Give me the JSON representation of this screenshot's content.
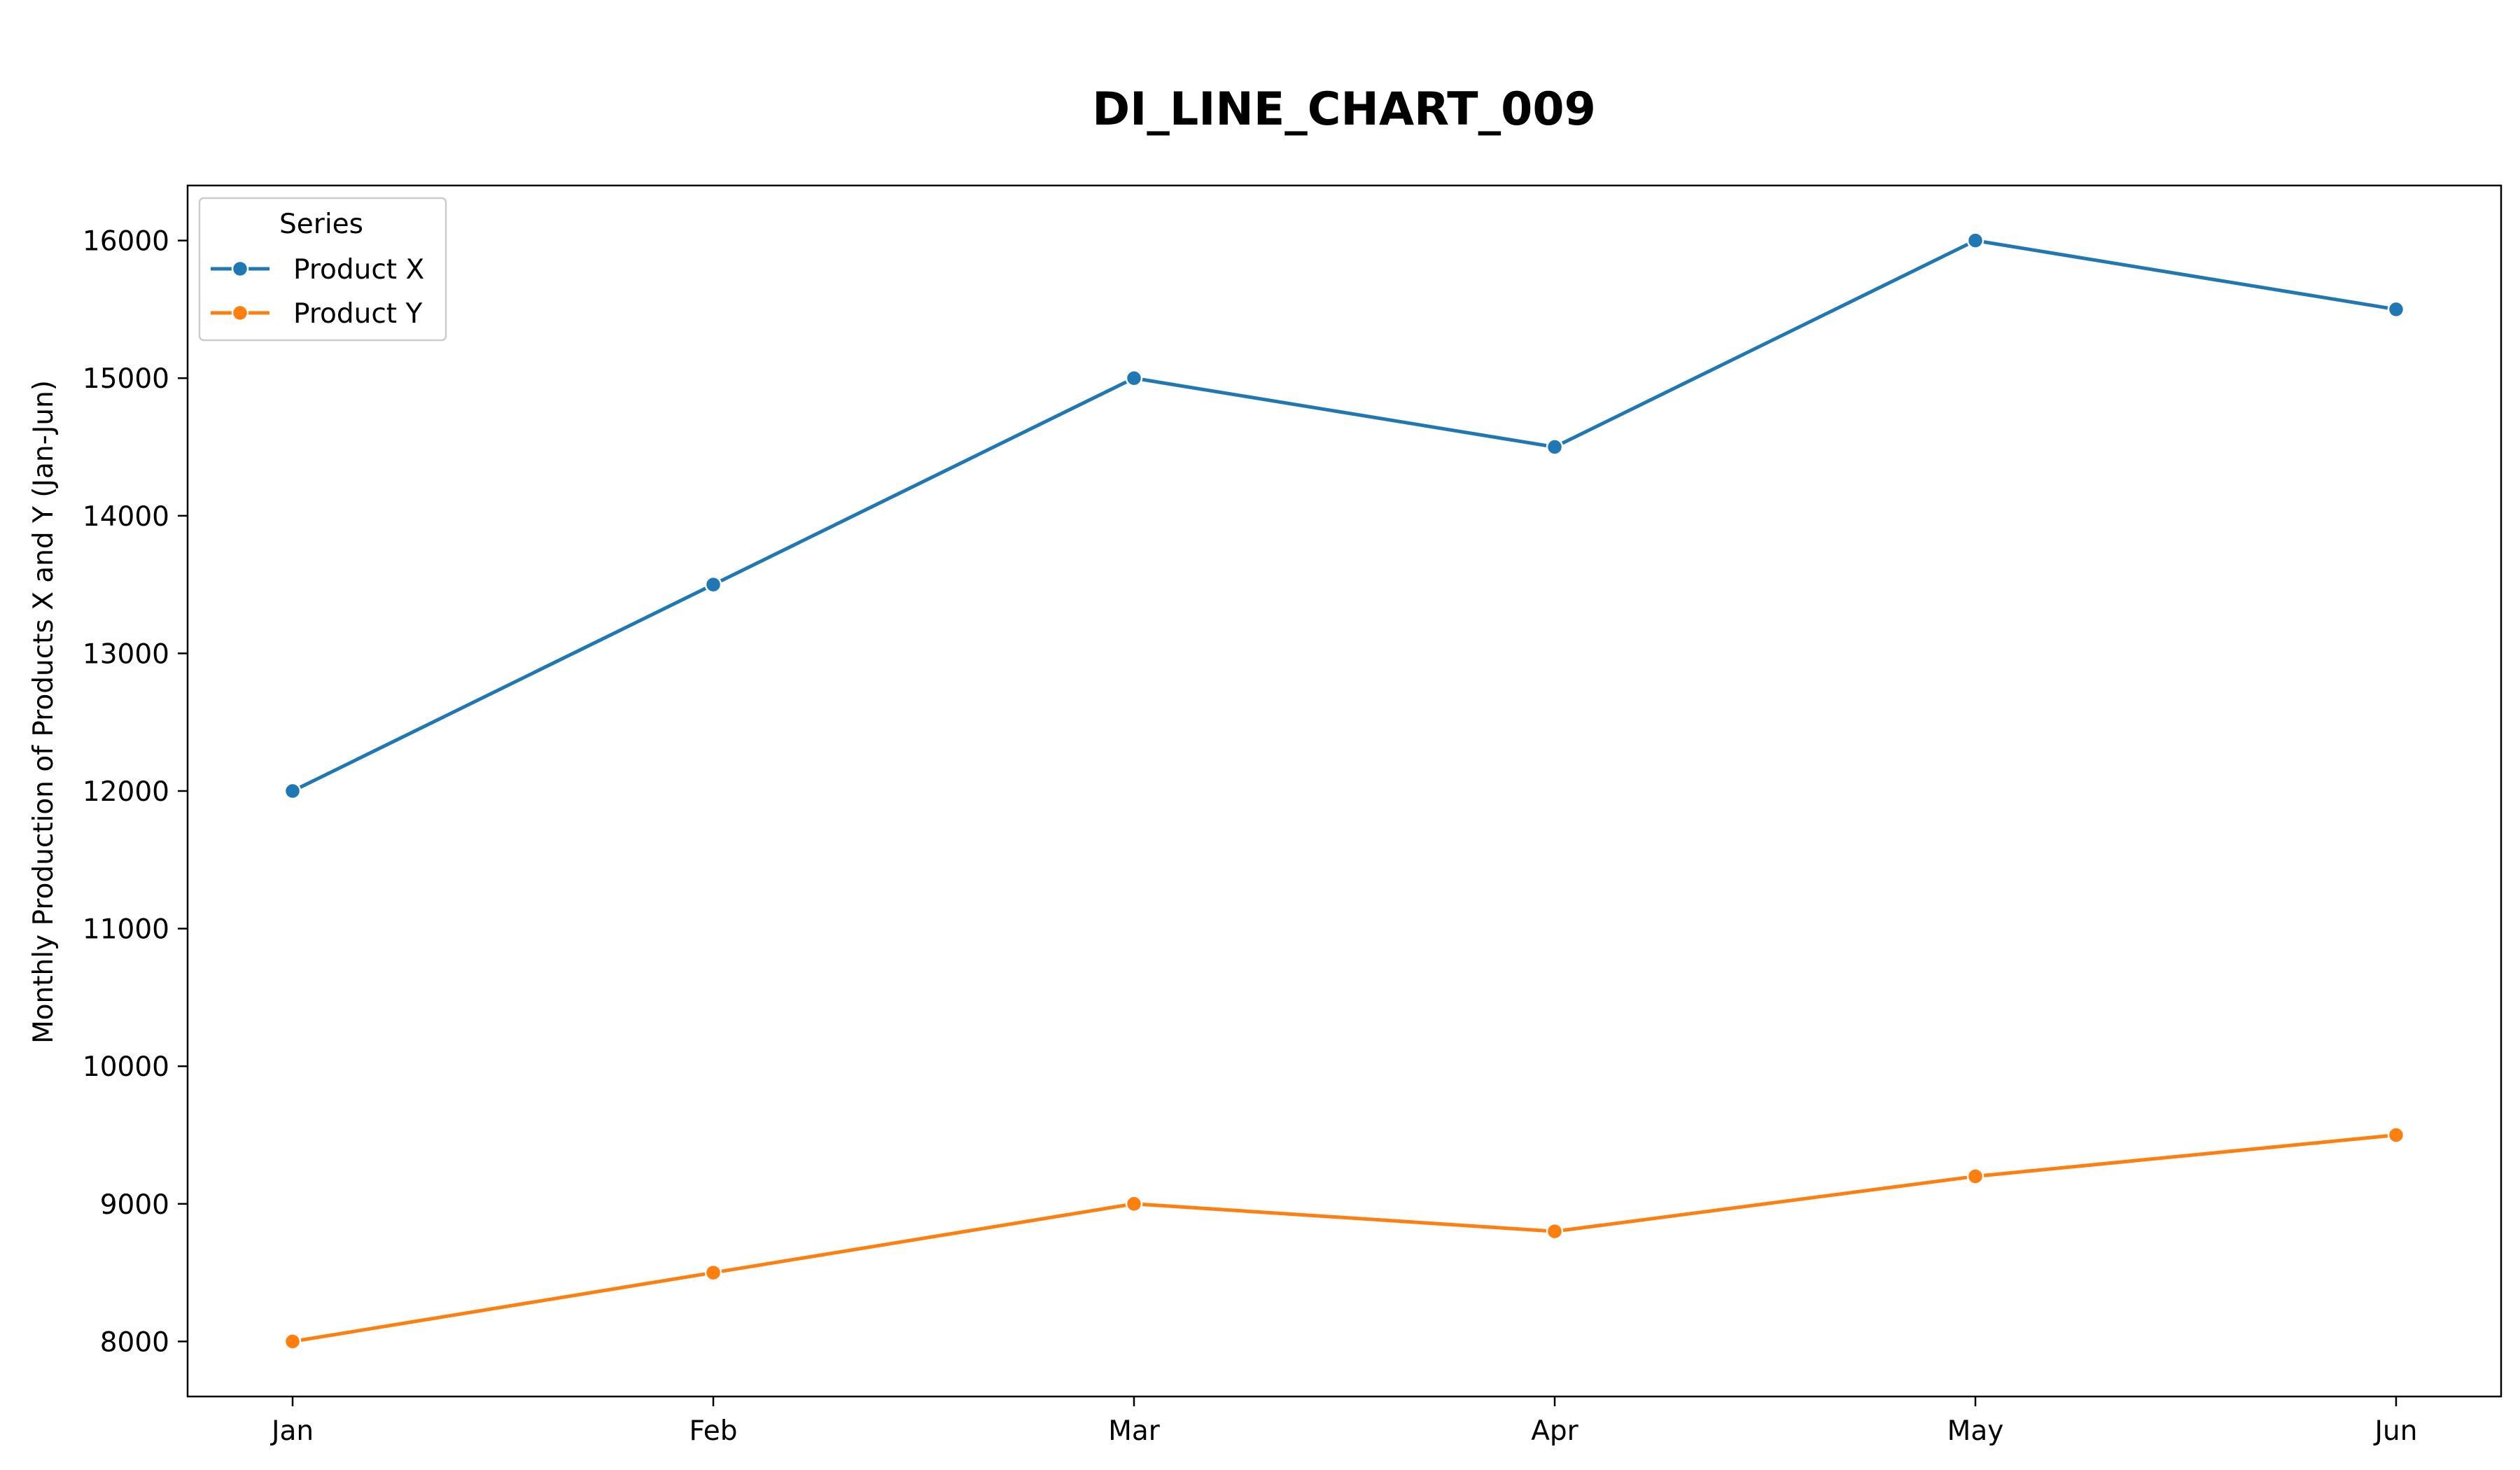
{
  "chart_data": {
    "type": "line",
    "title": "DI_LINE_CHART_009",
    "xlabel": "",
    "ylabel": "Monthly Production of Products X and Y (Jan-Jun)",
    "categories": [
      "Jan",
      "Feb",
      "Mar",
      "Apr",
      "May",
      "Jun"
    ],
    "ylim": [
      7600,
      16400
    ],
    "yticks": [
      8000,
      9000,
      10000,
      11000,
      12000,
      13000,
      14000,
      15000,
      16000
    ],
    "grid": false,
    "legend": {
      "title": "Series",
      "placement": "top-left"
    },
    "series": [
      {
        "name": "Product X",
        "color": "#1f77b4",
        "values": [
          12000,
          13500,
          15000,
          14500,
          16000,
          15500
        ]
      },
      {
        "name": "Product Y",
        "color": "#ff7f0e",
        "values": [
          8000,
          8500,
          9000,
          8800,
          9200,
          9500
        ]
      }
    ]
  }
}
